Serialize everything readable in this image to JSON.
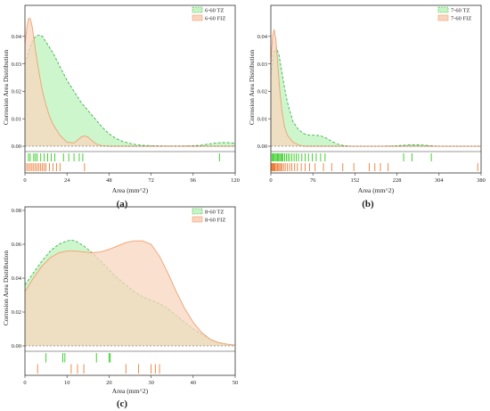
{
  "colors": {
    "tz_fill": "#c6f5c3",
    "tz_line": "#39b54a",
    "tz_rug": "#2ecc1a",
    "fiz_fill": "#f8d5bf",
    "fiz_line": "#f0a070",
    "fiz_rug": "#ee7d35",
    "frame": "#333333",
    "zero_line": "#555555"
  },
  "chart_data": [
    {
      "type": "area",
      "panel_label": "(a)",
      "xlabel": "Area (mm^2)",
      "ylabel": "Corrosion Area Distribution",
      "xlim": [
        0,
        120
      ],
      "ylim": [
        0,
        0.05
      ],
      "xticks": [
        0,
        24,
        48,
        72,
        96,
        120
      ],
      "xtick_labels": [
        "0",
        "24",
        "48",
        "72",
        "96",
        "120"
      ],
      "yticks": [
        0,
        0.01,
        0.02,
        0.03,
        0.04
      ],
      "ytick_labels": [
        "0.00",
        "0.01",
        "0.02",
        "0.03",
        "0.04"
      ],
      "legend_position": "top-right",
      "series": [
        {
          "name": "6-60 TZ",
          "style": "tz",
          "x": [
            0,
            2,
            4,
            6,
            8,
            10,
            12,
            16,
            20,
            24,
            28,
            32,
            36,
            40,
            44,
            48,
            52,
            56,
            60,
            64,
            68,
            72,
            80,
            90,
            100,
            104,
            108,
            112,
            116,
            120
          ],
          "y": [
            0.03,
            0.034,
            0.038,
            0.04,
            0.0405,
            0.04,
            0.038,
            0.034,
            0.029,
            0.024,
            0.02,
            0.016,
            0.013,
            0.01,
            0.007,
            0.0045,
            0.0028,
            0.0017,
            0.001,
            0.0005,
            0.0003,
            0.0002,
            0.0001,
            0.0001,
            0.0003,
            0.0007,
            0.0011,
            0.0013,
            0.0013,
            0.0011
          ],
          "rug": [
            2,
            3,
            5,
            6,
            7,
            9,
            11,
            13,
            15,
            17,
            22,
            25,
            28,
            31,
            33,
            111
          ]
        },
        {
          "name": "6-60 FIZ",
          "style": "fiz",
          "x": [
            0,
            1,
            2,
            3,
            4,
            5,
            6,
            8,
            10,
            12,
            14,
            16,
            20,
            24,
            28,
            30,
            32,
            34,
            36,
            38,
            40,
            42,
            44,
            48,
            52,
            60,
            120
          ],
          "y": [
            0.037,
            0.043,
            0.0465,
            0.0465,
            0.044,
            0.04,
            0.035,
            0.027,
            0.02,
            0.015,
            0.011,
            0.008,
            0.004,
            0.0015,
            0.0012,
            0.0022,
            0.0033,
            0.0038,
            0.0033,
            0.0022,
            0.0011,
            0.0005,
            0.0002,
            0,
            0,
            0,
            0
          ],
          "rug": [
            1,
            2,
            3,
            4,
            5,
            6,
            7,
            8,
            9,
            10,
            11,
            12,
            14,
            16,
            18,
            20,
            34
          ]
        }
      ]
    },
    {
      "type": "area",
      "panel_label": "(b)",
      "xlabel": "Area (mm^2)",
      "ylabel": "Corrosion Area Distribution",
      "xlim": [
        0,
        380
      ],
      "ylim": [
        0,
        0.05
      ],
      "xticks": [
        0,
        76,
        152,
        228,
        304,
        380
      ],
      "xtick_labels": [
        "0",
        "76",
        "152",
        "228",
        "304",
        "380"
      ],
      "yticks": [
        0,
        0.01,
        0.02,
        0.03,
        0.04
      ],
      "ytick_labels": [
        "0.00",
        "0.01",
        "0.02",
        "0.03",
        "0.04"
      ],
      "legend_position": "top-right",
      "series": [
        {
          "name": "7-60 TZ",
          "style": "tz",
          "x": [
            0,
            5,
            10,
            15,
            20,
            25,
            30,
            40,
            50,
            60,
            70,
            80,
            90,
            100,
            110,
            120,
            130,
            140,
            150,
            200,
            230,
            250,
            270,
            290,
            300,
            380
          ],
          "y": [
            0.026,
            0.034,
            0.036,
            0.033,
            0.027,
            0.021,
            0.016,
            0.009,
            0.006,
            0.0045,
            0.004,
            0.004,
            0.0038,
            0.003,
            0.0018,
            0.0008,
            0.0003,
            0.0001,
            0,
            0,
            0.0002,
            0.0005,
            0.0005,
            0.0002,
            0,
            0
          ],
          "rug": [
            2,
            4,
            6,
            8,
            10,
            12,
            14,
            16,
            18,
            20,
            22,
            25,
            28,
            31,
            34,
            38,
            42,
            46,
            50,
            56,
            62,
            68,
            75,
            82,
            90,
            98,
            240,
            255,
            290
          ]
        },
        {
          "name": "7-60 FIZ",
          "style": "fiz",
          "x": [
            0,
            3,
            6,
            9,
            12,
            16,
            20,
            25,
            30,
            40,
            50,
            60,
            80,
            380
          ],
          "y": [
            0.03,
            0.04,
            0.0425,
            0.039,
            0.031,
            0.021,
            0.013,
            0.007,
            0.004,
            0.0015,
            0.0005,
            0,
            0,
            0
          ],
          "rug": [
            1,
            2,
            3,
            4,
            5,
            6,
            7,
            8,
            10,
            12,
            14,
            16,
            18,
            20,
            23,
            26,
            30,
            34,
            38,
            43,
            48,
            55,
            62,
            70,
            80,
            95,
            110,
            130,
            150,
            178,
            188,
            198,
            212,
            374
          ]
        }
      ]
    },
    {
      "type": "area",
      "panel_label": "(c)",
      "xlabel": "Area (mm^2)",
      "ylabel": "Corrosion Area Distribution",
      "xlim": [
        0,
        50
      ],
      "ylim": [
        0,
        0.08
      ],
      "xticks": [
        0,
        10,
        20,
        30,
        40,
        50
      ],
      "xtick_labels": [
        "0",
        "10",
        "20",
        "30",
        "40",
        "50"
      ],
      "yticks": [
        0,
        0.02,
        0.04,
        0.06,
        0.08
      ],
      "ytick_labels": [
        "0.00",
        "0.02",
        "0.04",
        "0.06",
        "0.08"
      ],
      "legend_position": "top-right",
      "series": [
        {
          "name": "8-60 TZ",
          "style": "tz",
          "x": [
            0,
            2,
            4,
            6,
            8,
            10,
            11,
            12,
            14,
            16,
            18,
            20,
            22,
            24,
            26,
            28,
            30,
            32,
            34,
            36,
            38,
            40,
            42,
            44,
            46,
            48,
            50
          ],
          "y": [
            0.036,
            0.043,
            0.05,
            0.056,
            0.06,
            0.062,
            0.0625,
            0.062,
            0.059,
            0.055,
            0.05,
            0.045,
            0.04,
            0.036,
            0.032,
            0.029,
            0.027,
            0.025,
            0.022,
            0.018,
            0.014,
            0.01,
            0.007,
            0.004,
            0.002,
            0.001,
            0.0005
          ],
          "rug": [
            5,
            9,
            9.5,
            17,
            20,
            20.3
          ]
        },
        {
          "name": "8-60 FIZ",
          "style": "fiz",
          "x": [
            0,
            2,
            4,
            6,
            8,
            10,
            12,
            14,
            16,
            18,
            20,
            22,
            24,
            26,
            28,
            30,
            32,
            34,
            36,
            38,
            40,
            42,
            44,
            46,
            48,
            50
          ],
          "y": [
            0.032,
            0.04,
            0.047,
            0.052,
            0.055,
            0.056,
            0.056,
            0.0555,
            0.055,
            0.0555,
            0.057,
            0.059,
            0.061,
            0.062,
            0.062,
            0.06,
            0.053,
            0.043,
            0.032,
            0.022,
            0.014,
            0.008,
            0.004,
            0.002,
            0.001,
            0.0005
          ],
          "rug": [
            3,
            11,
            12.5,
            14,
            24,
            27,
            30,
            31,
            32
          ]
        }
      ]
    }
  ]
}
